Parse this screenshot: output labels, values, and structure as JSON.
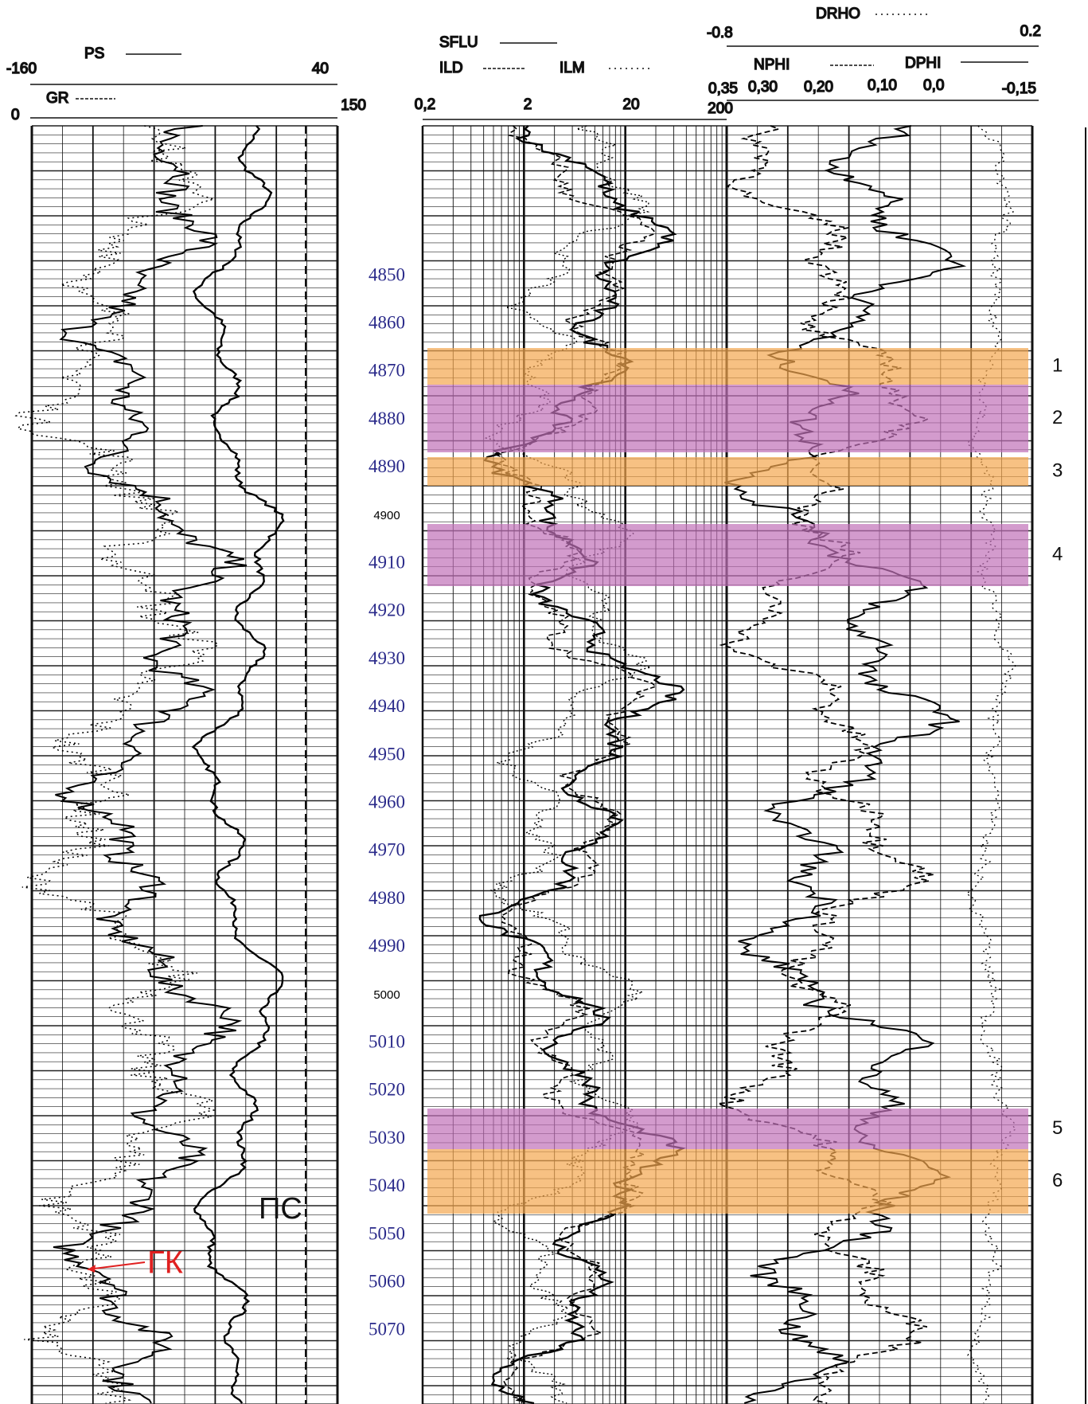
{
  "tracks": [
    {
      "curves": [
        {
          "name": "PS",
          "min": "-160",
          "max": "40"
        },
        {
          "name": "GR",
          "min": "0",
          "max": "150"
        }
      ]
    },
    {
      "curves": [
        {
          "name": "SFLU"
        },
        {
          "name": "ILD"
        },
        {
          "name": "ILM"
        }
      ],
      "scale": [
        "0,2",
        "2",
        "20",
        "200"
      ]
    },
    {
      "curves": [
        {
          "name": "DRHO",
          "min": "-0.8",
          "max": "0.2"
        },
        {
          "name": "NPHI"
        },
        {
          "name": "DPHI"
        }
      ],
      "scale": [
        "0,35",
        "0,30",
        "0,20",
        "0,10",
        "0,0",
        "-0,15"
      ]
    }
  ],
  "depths": [
    "4850",
    "4860",
    "4870",
    "4880",
    "4890",
    "4900",
    "4910",
    "4920",
    "4930",
    "4940",
    "4950",
    "4960",
    "4970",
    "4980",
    "4990",
    "5000",
    "5010",
    "5020",
    "5030",
    "5040",
    "5050",
    "5060",
    "5070"
  ],
  "zones": [
    "1",
    "2",
    "3",
    "4",
    "5",
    "6"
  ],
  "annotations": {
    "sp": "ПС",
    "gr": "ГК"
  }
}
